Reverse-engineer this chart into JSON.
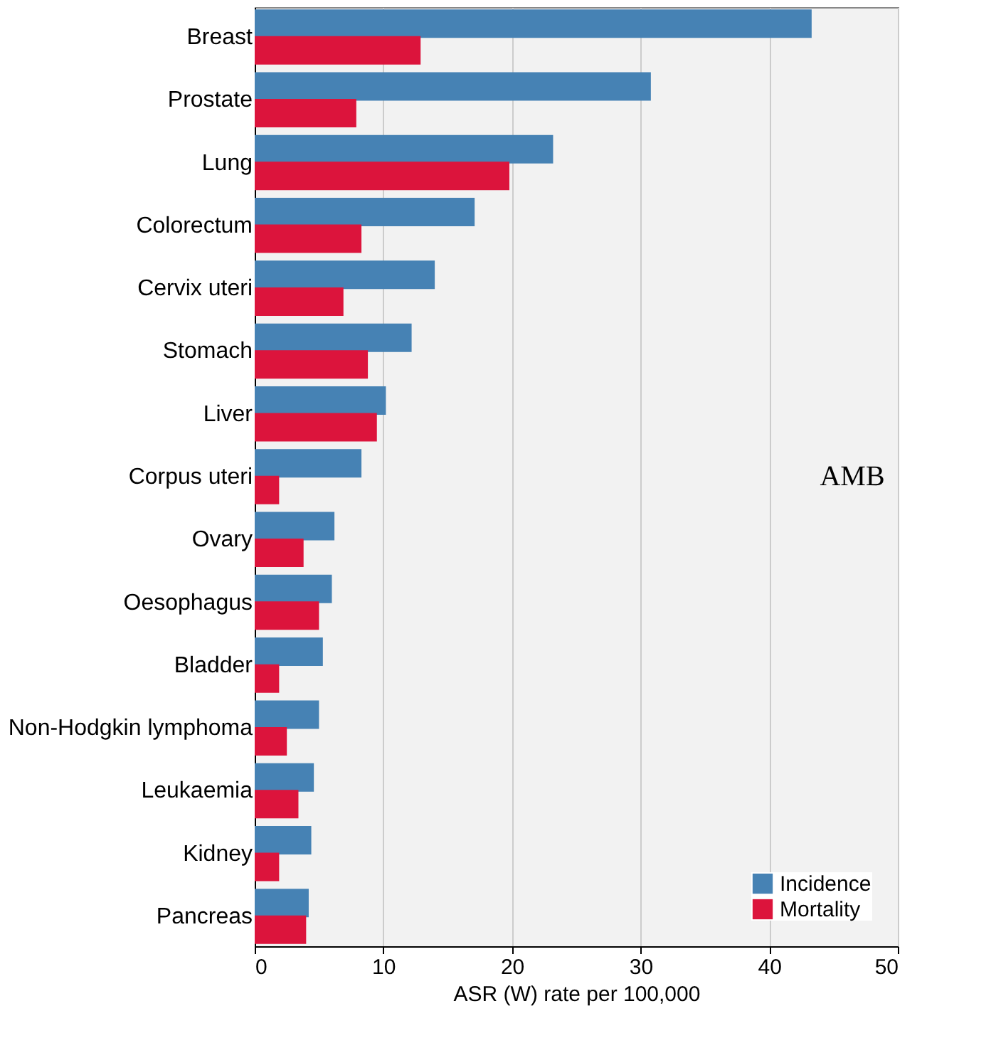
{
  "chart_data": {
    "type": "bar",
    "orientation": "horizontal",
    "xlabel": "ASR (W) rate per 100,000",
    "categories": [
      "Breast",
      "Prostate",
      "Lung",
      "Colorectum",
      "Cervix uteri",
      "Stomach",
      "Liver",
      "Corpus uteri",
      "Ovary",
      "Oesophagus",
      "Bladder",
      "Non-Hodgkin lymphoma",
      "Leukaemia",
      "Kidney",
      "Pancreas"
    ],
    "series": [
      {
        "name": "Incidence",
        "color": "#4682b4",
        "values": [
          43.3,
          30.8,
          23.2,
          17.1,
          14.0,
          12.2,
          10.2,
          8.3,
          6.2,
          6.0,
          5.3,
          5.0,
          4.6,
          4.4,
          4.2
        ]
      },
      {
        "name": "Mortality",
        "color": "#dc143c",
        "values": [
          12.9,
          7.9,
          19.8,
          8.3,
          6.9,
          8.8,
          9.5,
          1.9,
          3.8,
          5.0,
          1.9,
          2.5,
          3.4,
          1.9,
          4.0
        ]
      }
    ],
    "xlim": [
      0,
      50
    ],
    "xticks": [
      0,
      10,
      20,
      30,
      40,
      50
    ],
    "grid": "x",
    "legend": "bottom right",
    "annotations": [
      "AMB"
    ]
  }
}
